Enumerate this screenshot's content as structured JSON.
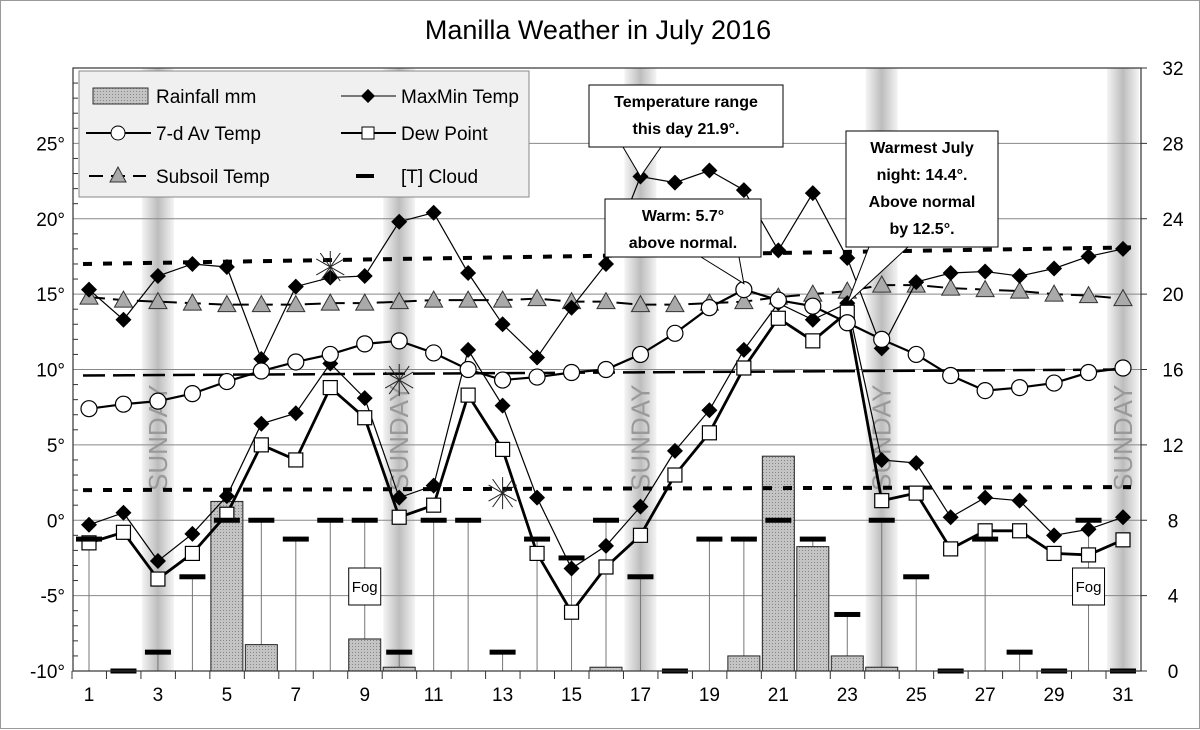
{
  "chart_data": {
    "type": "line",
    "title": "Manilla Weather in July 2016",
    "x": [
      1,
      2,
      3,
      4,
      5,
      6,
      7,
      8,
      9,
      10,
      11,
      12,
      13,
      14,
      15,
      16,
      17,
      18,
      19,
      20,
      21,
      22,
      23,
      24,
      25,
      26,
      27,
      28,
      29,
      30,
      31
    ],
    "x_tick_labels": [
      "1",
      "3",
      "5",
      "7",
      "9",
      "11",
      "13",
      "15",
      "17",
      "19",
      "21",
      "23",
      "25",
      "27",
      "29",
      "31"
    ],
    "xlim": [
      0.5,
      31.5
    ],
    "y_left": {
      "ylim": [
        -10,
        30
      ],
      "tick_labels": [
        "-10°",
        "-5°",
        "0°",
        "5°",
        "10°",
        "15°",
        "20°",
        "25°"
      ],
      "tick_values": [
        -10,
        -5,
        0,
        5,
        10,
        15,
        20,
        25
      ]
    },
    "y_right": {
      "ylim": [
        0,
        32
      ],
      "tick_labels": [
        "0",
        "4",
        "8",
        "12",
        "16",
        "20",
        "24",
        "28",
        "32"
      ],
      "tick_values": [
        0,
        4,
        8,
        12,
        16,
        20,
        24,
        28,
        32
      ]
    },
    "grid": "horizontal",
    "legend": {
      "placement": "top-left",
      "entries": [
        "Rainfall mm",
        "MaxMin Temp",
        "7-d Av Temp",
        "Dew Point",
        "Subsoil Temp",
        "[T] Cloud"
      ]
    },
    "series": [
      {
        "name": "MaxMin Temp",
        "part": "max",
        "axis": "left",
        "color": "#000000",
        "values": [
          15.3,
          13.3,
          16.2,
          17.0,
          16.8,
          10.7,
          15.5,
          16.1,
          16.2,
          19.8,
          20.4,
          16.4,
          13.0,
          10.8,
          14.1,
          17.0,
          22.8,
          22.4,
          23.2,
          21.9,
          17.9,
          21.7,
          17.4,
          11.4,
          15.8,
          16.4,
          16.5,
          16.2,
          16.7,
          17.5,
          18.0
        ]
      },
      {
        "name": "MaxMin Temp",
        "part": "min",
        "axis": "left",
        "color": "#000000",
        "values": [
          -0.3,
          0.5,
          -2.7,
          -0.9,
          1.6,
          6.4,
          7.1,
          10.4,
          8.1,
          1.5,
          2.3,
          11.3,
          7.6,
          1.5,
          -3.2,
          -1.7,
          0.9,
          4.6,
          7.3,
          11.3,
          14.4,
          13.3,
          14.4,
          4.0,
          3.8,
          0.2,
          1.5,
          1.3,
          -1.0,
          -0.6,
          0.2
        ]
      },
      {
        "name": "7-d Av Temp",
        "axis": "left",
        "color": "#000000",
        "values": [
          7.4,
          7.7,
          7.9,
          8.4,
          9.2,
          9.9,
          10.5,
          11.0,
          11.7,
          11.9,
          11.1,
          10.0,
          9.3,
          9.5,
          9.8,
          10.0,
          11.0,
          12.4,
          14.1,
          15.3,
          14.6,
          14.2,
          13.1,
          12.0,
          11.0,
          9.6,
          8.6,
          8.8,
          9.1,
          9.8,
          10.1
        ]
      },
      {
        "name": "Dew Point",
        "axis": "left",
        "color": "#000000",
        "values": [
          -1.5,
          -0.8,
          -3.9,
          -2.2,
          0.4,
          5.0,
          4.0,
          8.8,
          6.8,
          0.2,
          1.0,
          8.3,
          4.7,
          -2.2,
          -6.1,
          -3.1,
          -1.0,
          3.0,
          5.8,
          10.1,
          13.4,
          11.9,
          13.8,
          1.3,
          1.8,
          -1.9,
          -0.7,
          -0.7,
          -2.2,
          -2.3,
          -1.3
        ]
      },
      {
        "name": "Subsoil Temp",
        "axis": "left",
        "color": "#aaaaaa",
        "values": [
          14.8,
          14.6,
          14.5,
          14.4,
          14.3,
          14.3,
          14.3,
          14.4,
          14.4,
          14.5,
          14.6,
          14.6,
          14.6,
          14.7,
          14.5,
          14.5,
          14.3,
          14.3,
          14.4,
          14.5,
          14.8,
          15.0,
          15.2,
          15.6,
          15.6,
          15.4,
          15.3,
          15.2,
          15.0,
          14.9,
          14.7
        ]
      },
      {
        "name": "Rainfall mm",
        "type": "bar",
        "axis": "right",
        "color": "#b4b4b4",
        "values": [
          0,
          0,
          0,
          0,
          9.0,
          1.4,
          0,
          0,
          1.7,
          0.2,
          0,
          0,
          0,
          0,
          0,
          0.2,
          0,
          0,
          0,
          0.8,
          11.4,
          6.6,
          0.8,
          0.2,
          0,
          0,
          0,
          0,
          0,
          0,
          0
        ]
      },
      {
        "name": "[T] Cloud",
        "type": "dash",
        "axis": "right",
        "color": "#000000",
        "values": [
          7,
          0,
          1,
          5,
          8,
          8,
          7,
          8,
          8,
          1,
          8,
          8,
          1,
          7,
          6,
          8,
          5,
          0,
          7,
          7,
          8,
          7,
          3,
          8,
          5,
          0,
          7,
          1,
          0,
          8,
          0
        ]
      }
    ],
    "reference_lines": [
      {
        "style": "dotted",
        "from": 17.0,
        "to": 18.1
      },
      {
        "style": "long-dash",
        "from": 9.6,
        "to": 10.0
      },
      {
        "style": "dotted",
        "from": 2.0,
        "to": 2.2
      }
    ],
    "star_markers": [
      {
        "x": 8,
        "y": 16.8
      },
      {
        "x": 10,
        "y": 9.3
      },
      {
        "x": 13,
        "y": 1.8
      }
    ],
    "sunday_bands": {
      "days": [
        3,
        10,
        17,
        24,
        31
      ],
      "label": "SUNDAY"
    },
    "fog_labels": [
      {
        "x": 9,
        "text": "Fog"
      },
      {
        "x": 30,
        "text": "Fog"
      }
    ],
    "annotations": [
      {
        "lines": [
          "Temperature range",
          "this day 21.9°."
        ],
        "target_day": 17
      },
      {
        "lines": [
          "Warm: 5.7°",
          "above normal."
        ],
        "target_day": 20
      },
      {
        "lines": [
          "Warmest July",
          "night: 14.4°.",
          "Above normal",
          "by 12.5°."
        ],
        "target_day": 23
      }
    ]
  }
}
